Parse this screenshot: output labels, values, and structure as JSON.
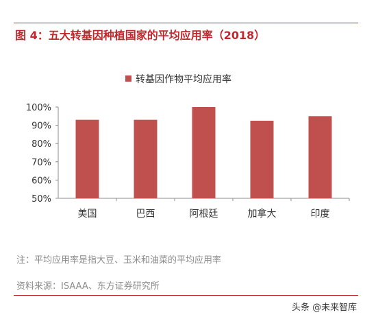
{
  "figure_title": "图 4：五大转基因种植国家的平均应用率（2018）",
  "note": "注：平均应用率是指大豆、玉米和油菜的平均应用率",
  "source": "资料来源：ISAAA、东方证券研究所",
  "watermark": "头条 @未来智库",
  "colors": {
    "accent": "#c0282d",
    "bar": "#c0504d"
  },
  "chart_data": {
    "type": "bar",
    "title": "",
    "categories": [
      "美国",
      "巴西",
      "阿根廷",
      "加拿大",
      "印度"
    ],
    "series": [
      {
        "name": "转基因作物平均应用率",
        "values": [
          93,
          93,
          100,
          92.5,
          95
        ]
      }
    ],
    "ylim": [
      50,
      100
    ],
    "yticks": [
      "50%",
      "60%",
      "70%",
      "80%",
      "90%",
      "100%"
    ],
    "ytick_values": [
      50,
      60,
      70,
      80,
      90,
      100
    ],
    "xlabel": "",
    "ylabel": "",
    "grid": false,
    "legend_position": "top-center"
  }
}
